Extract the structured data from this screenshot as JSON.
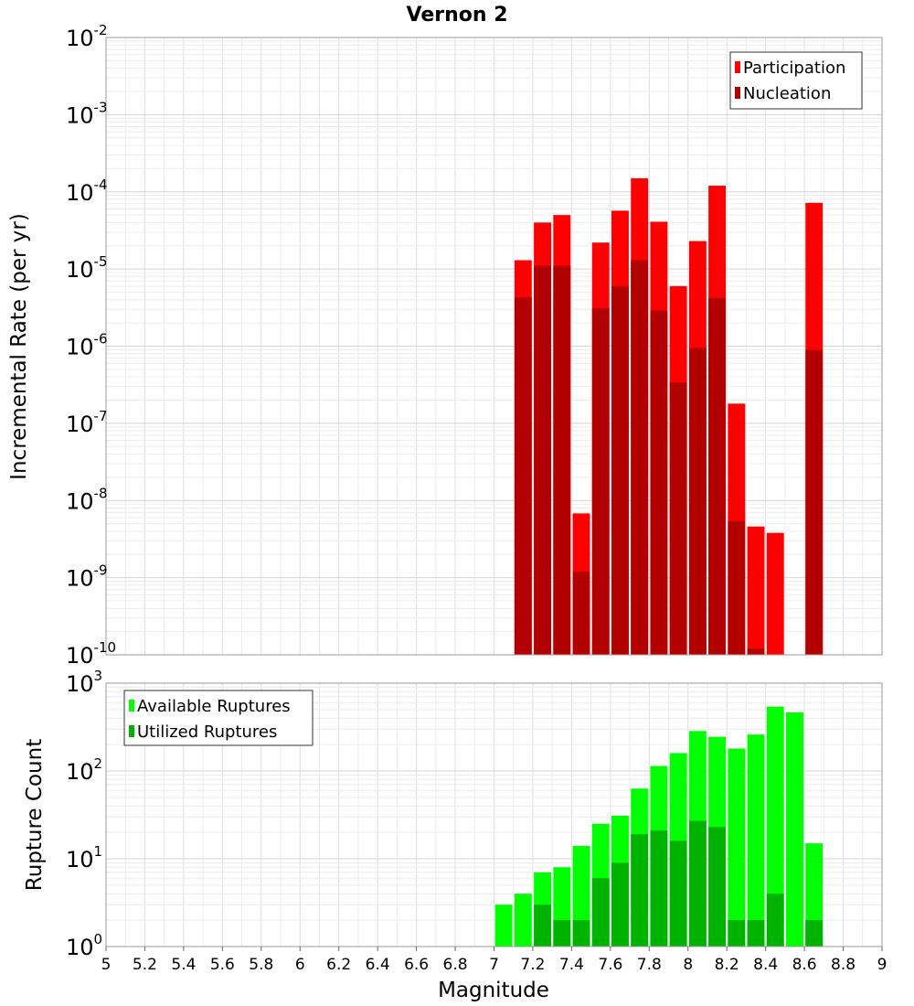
{
  "chart_data": {
    "type": "bar",
    "title": "Vernon 2",
    "xlabel": "Magnitude",
    "xlim": [
      5,
      9
    ],
    "xticks": [
      "5",
      "5.2",
      "5.4",
      "5.6",
      "5.8",
      "6",
      "6.2",
      "6.4",
      "6.6",
      "6.8",
      "7",
      "7.2",
      "7.4",
      "7.6",
      "7.8",
      "8",
      "8.2",
      "8.4",
      "8.6",
      "8.8",
      "9"
    ],
    "grid": true,
    "panels": [
      {
        "ylabel": "Incremental Rate (per yr)",
        "yscale": "log",
        "ylim_exp": [
          -10,
          -2
        ],
        "ytick_exponents": [
          "-10",
          "-9",
          "-8",
          "-7",
          "-6",
          "-5",
          "-4",
          "-3",
          "-2"
        ],
        "legend_position": "top-right",
        "legend": [
          "Participation",
          "Nucleation"
        ],
        "colors": [
          "#ff0000",
          "#b20000"
        ],
        "series": [
          {
            "name": "Participation",
            "x": [
              7.15,
              7.25,
              7.35,
              7.45,
              7.55,
              7.65,
              7.75,
              7.85,
              7.95,
              8.05,
              8.15,
              8.25,
              8.35,
              8.45,
              8.65
            ],
            "values": [
              1.3e-05,
              4e-05,
              5e-05,
              6.8e-09,
              2.2e-05,
              5.7e-05,
              0.00015,
              4.1e-05,
              6e-06,
              2.3e-05,
              0.00012,
              1.8e-07,
              4.6e-09,
              3.8e-09,
              7.2e-05
            ]
          },
          {
            "name": "Nucleation",
            "x": [
              7.15,
              7.25,
              7.35,
              7.45,
              7.55,
              7.65,
              7.75,
              7.85,
              7.95,
              8.05,
              8.15,
              8.25,
              8.35,
              8.65
            ],
            "values": [
              4.3e-06,
              1.1e-05,
              1.1e-05,
              1.2e-09,
              3.1e-06,
              6e-06,
              1.3e-05,
              2.9e-06,
              3.4e-07,
              9.5e-07,
              4.2e-06,
              5.4e-09,
              1.2e-10,
              8.9e-07
            ]
          }
        ]
      },
      {
        "ylabel": "Rupture Count",
        "yscale": "log",
        "ylim_exp": [
          0,
          3
        ],
        "ytick_exponents": [
          "0",
          "1",
          "2",
          "3"
        ],
        "legend_position": "top-left",
        "legend": [
          "Available Ruptures",
          "Utilized Ruptures"
        ],
        "colors": [
          "#00ff00",
          "#00b200"
        ],
        "series": [
          {
            "name": "Available Ruptures",
            "x": [
              6.65,
              6.85,
              7.05,
              7.15,
              7.25,
              7.35,
              7.45,
              7.55,
              7.65,
              7.75,
              7.85,
              7.95,
              8.05,
              8.15,
              8.25,
              8.35,
              8.45,
              8.55,
              8.65
            ],
            "values": [
              1,
              1,
              3,
              4,
              7,
              8,
              14,
              25,
              31,
              63,
              114,
              160,
              285,
              245,
              180,
              260,
              540,
              465,
              15
            ]
          },
          {
            "name": "Utilized Ruptures",
            "x": [
              7.15,
              7.25,
              7.35,
              7.45,
              7.55,
              7.65,
              7.75,
              7.85,
              7.95,
              8.05,
              8.15,
              8.25,
              8.35,
              8.45,
              8.65
            ],
            "values": [
              1,
              3,
              2,
              2,
              6,
              9,
              19,
              21,
              16,
              27,
              23,
              2,
              2,
              4,
              2
            ]
          }
        ]
      }
    ]
  }
}
